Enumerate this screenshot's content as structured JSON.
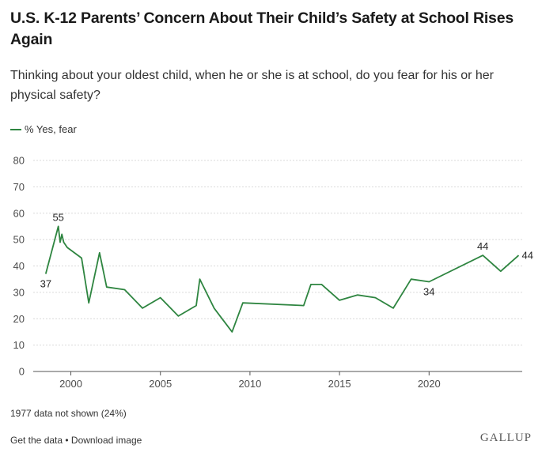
{
  "title": "U.S. K-12 Parents’ Concern About Their Child’s Safety at School Rises Again",
  "subtitle": "Thinking about your oldest child, when he or she is at school, do you fear for his or her physical safety?",
  "legend": {
    "label": "% Yes, fear",
    "color": "#2e8540"
  },
  "note": "1977 data not shown (24%)",
  "footer": {
    "get_data": "Get the data",
    "separator": " • ",
    "download": "Download image"
  },
  "brand": "GALLUP",
  "chart_data": {
    "type": "line",
    "title": "U.S. K-12 Parents’ Concern About Their Child’s Safety at School Rises Again",
    "xlabel": "",
    "ylabel": "",
    "xlim": [
      1997.9,
      2025.2
    ],
    "ylim": [
      0,
      80
    ],
    "yticks": [
      0,
      10,
      20,
      30,
      40,
      50,
      60,
      70,
      80
    ],
    "xticks": [
      2000,
      2005,
      2010,
      2015,
      2020
    ],
    "grid": true,
    "series": [
      {
        "name": "% Yes, fear",
        "color": "#2e8540",
        "x": [
          1998.6,
          1999.3,
          1999.4,
          1999.5,
          1999.6,
          1999.8,
          2000.6,
          2001.0,
          2001.6,
          2002.0,
          2003.0,
          2004.0,
          2005.0,
          2006.0,
          2007.0,
          2007.2,
          2008.0,
          2009.0,
          2009.6,
          2013.0,
          2013.4,
          2014.0,
          2015.0,
          2016.0,
          2017.0,
          2018.0,
          2019.0,
          2020.0,
          2023.0,
          2024.0,
          2025.0
        ],
        "values": [
          37,
          55,
          49,
          52,
          49,
          47,
          43,
          26,
          45,
          32,
          31,
          24,
          28,
          21,
          25,
          35,
          24,
          15,
          26,
          25,
          33,
          33,
          27,
          29,
          28,
          24,
          35,
          34,
          44,
          38,
          44
        ]
      }
    ],
    "annotations": [
      {
        "text": "37",
        "x": 1998.6,
        "y": 37,
        "position": "below"
      },
      {
        "text": "55",
        "x": 1999.3,
        "y": 55,
        "position": "above"
      },
      {
        "text": "34",
        "x": 2020.0,
        "y": 34,
        "position": "below"
      },
      {
        "text": "44",
        "x": 2023.0,
        "y": 44,
        "position": "above"
      },
      {
        "text": "44",
        "x": 2025.0,
        "y": 44,
        "position": "right"
      }
    ]
  }
}
